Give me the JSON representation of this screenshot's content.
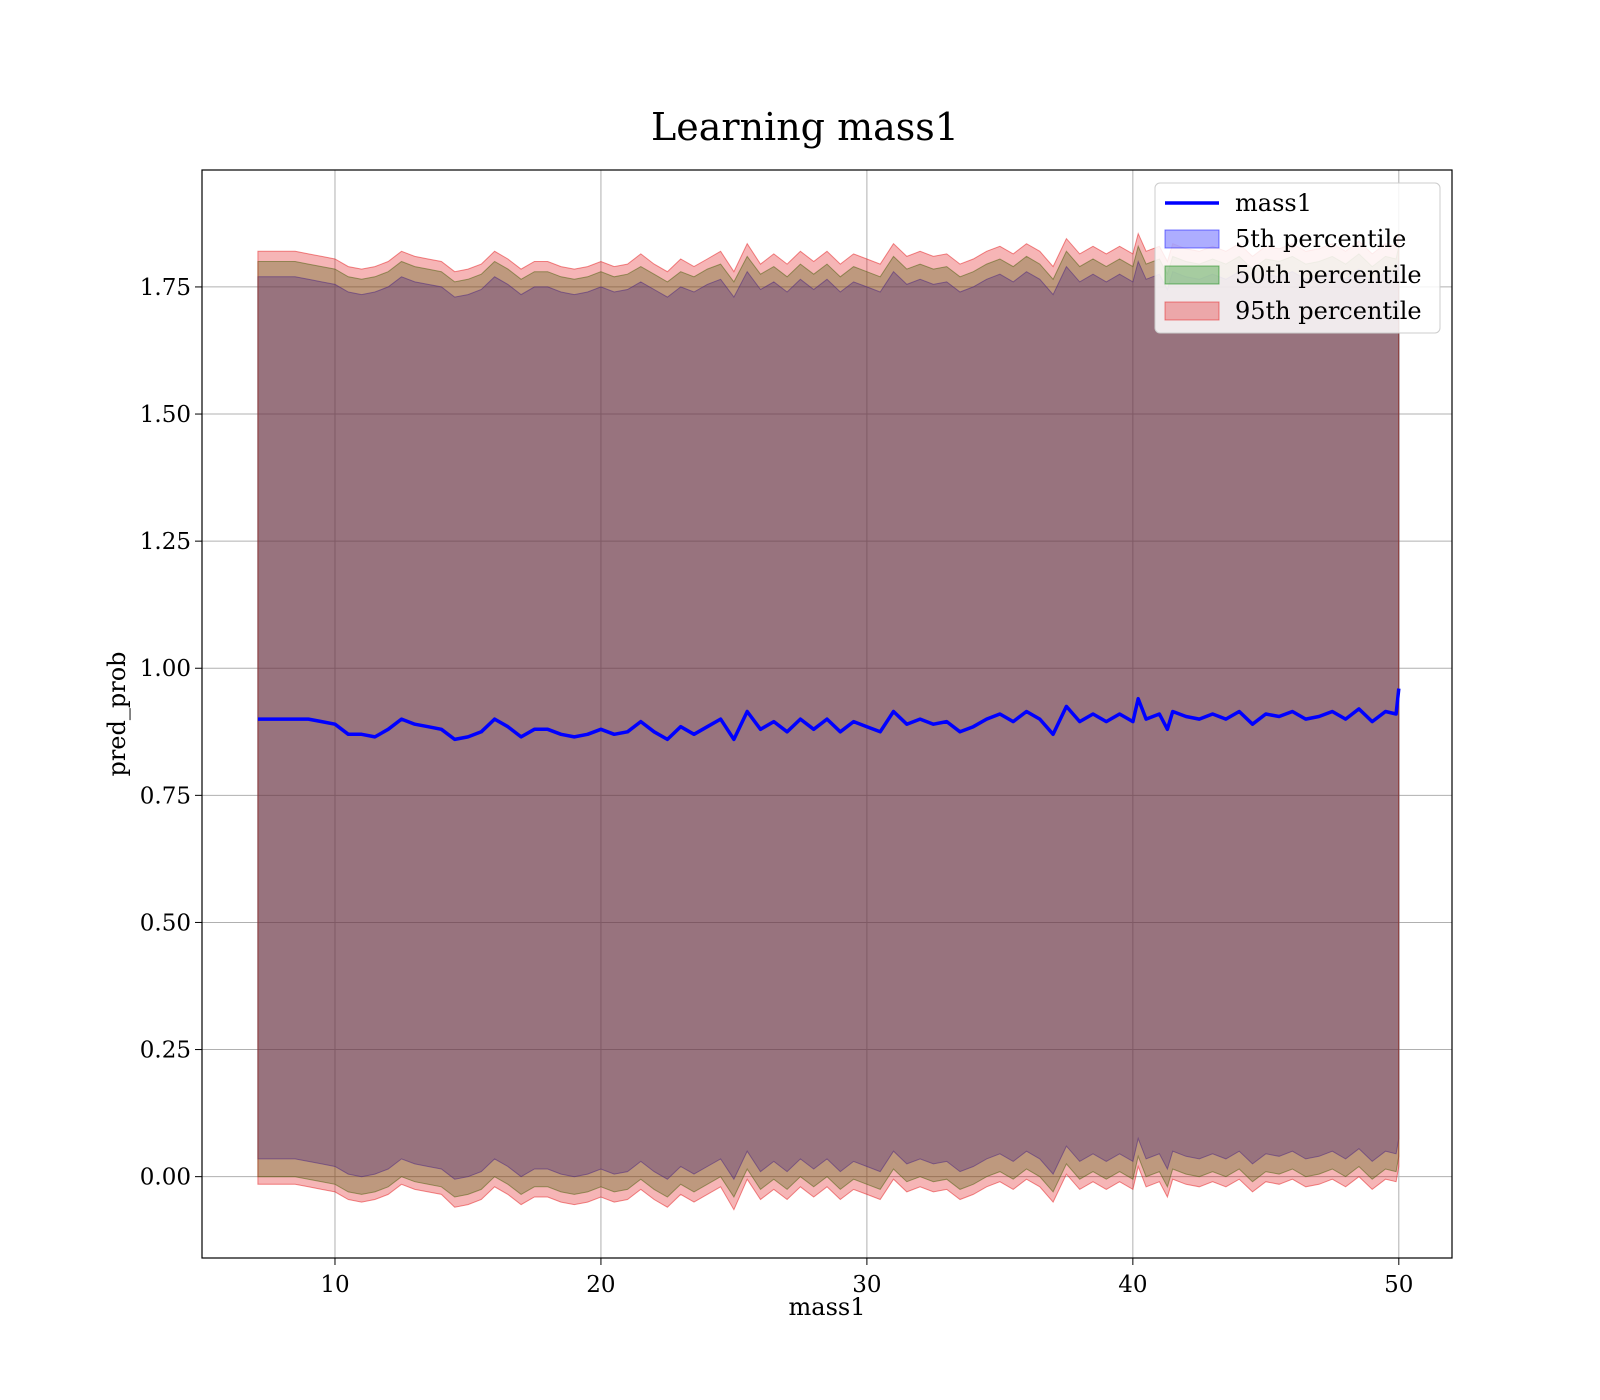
{
  "chart_data": {
    "type": "line",
    "title": "Learning mass1",
    "xlabel": "mass1",
    "ylabel": "pred_prob",
    "xlim": [
      5,
      52
    ],
    "ylim": [
      -0.16,
      1.98
    ],
    "grid": true,
    "legend_position": "top-right",
    "xticks": [
      10,
      20,
      30,
      40,
      50
    ],
    "xtick_labels": [
      "10",
      "20",
      "30",
      "40",
      "50"
    ],
    "yticks": [
      0.0,
      0.25,
      0.5,
      0.75,
      1.0,
      1.25,
      1.5,
      1.75
    ],
    "ytick_labels": [
      "0.00",
      "0.25",
      "0.50",
      "0.75",
      "1.00",
      "1.25",
      "1.50",
      "1.75"
    ],
    "legend": [
      {
        "label": "mass1",
        "kind": "line",
        "color": "#0000ff"
      },
      {
        "label": "5th percentile",
        "kind": "patch",
        "color": "#0000ff"
      },
      {
        "label": "50th percentile",
        "kind": "patch",
        "color": "#008000"
      },
      {
        "label": "95th percentile",
        "kind": "patch",
        "color": "#e31a1c"
      }
    ],
    "x": [
      7.1,
      7.5,
      8.0,
      8.5,
      9.0,
      9.5,
      10.0,
      10.5,
      11.0,
      11.5,
      12.0,
      12.5,
      13.0,
      13.5,
      14.0,
      14.5,
      15.0,
      15.5,
      16.0,
      16.5,
      17.0,
      17.5,
      18.0,
      18.5,
      19.0,
      19.5,
      20.0,
      20.5,
      21.0,
      21.5,
      22.0,
      22.5,
      23.0,
      23.5,
      24.0,
      24.5,
      25.0,
      25.5,
      26.0,
      26.5,
      27.0,
      27.5,
      28.0,
      28.5,
      29.0,
      29.5,
      30.0,
      30.5,
      31.0,
      31.5,
      32.0,
      32.5,
      33.0,
      33.5,
      34.0,
      34.5,
      35.0,
      35.5,
      36.0,
      36.5,
      37.0,
      37.5,
      38.0,
      38.5,
      39.0,
      39.5,
      40.0,
      40.2,
      40.5,
      41.0,
      41.3,
      41.5,
      42.0,
      42.5,
      43.0,
      43.5,
      44.0,
      44.5,
      45.0,
      45.5,
      46.0,
      46.5,
      47.0,
      47.5,
      48.0,
      48.5,
      49.0,
      49.5,
      49.9,
      50.0
    ],
    "series": [
      {
        "name": "mass1",
        "kind": "line",
        "color": "#0000ff",
        "values": [
          0.9,
          0.9,
          0.9,
          0.9,
          0.9,
          0.895,
          0.89,
          0.87,
          0.87,
          0.865,
          0.88,
          0.9,
          0.89,
          0.885,
          0.88,
          0.86,
          0.865,
          0.875,
          0.9,
          0.885,
          0.865,
          0.88,
          0.88,
          0.87,
          0.865,
          0.87,
          0.88,
          0.87,
          0.875,
          0.895,
          0.875,
          0.86,
          0.885,
          0.87,
          0.885,
          0.9,
          0.86,
          0.915,
          0.88,
          0.895,
          0.875,
          0.9,
          0.88,
          0.9,
          0.875,
          0.895,
          0.885,
          0.875,
          0.915,
          0.89,
          0.9,
          0.89,
          0.895,
          0.875,
          0.885,
          0.9,
          0.91,
          0.895,
          0.915,
          0.9,
          0.87,
          0.925,
          0.895,
          0.91,
          0.895,
          0.91,
          0.895,
          0.94,
          0.9,
          0.91,
          0.88,
          0.915,
          0.905,
          0.9,
          0.91,
          0.9,
          0.915,
          0.89,
          0.91,
          0.905,
          0.915,
          0.9,
          0.905,
          0.915,
          0.9,
          0.92,
          0.895,
          0.915,
          0.91,
          0.96
        ]
      },
      {
        "name": "5th percentile",
        "kind": "band",
        "color": "#0000ff",
        "upper": [
          1.77,
          1.77,
          1.77,
          1.77,
          1.765,
          1.76,
          1.755,
          1.74,
          1.735,
          1.74,
          1.75,
          1.77,
          1.76,
          1.755,
          1.75,
          1.73,
          1.735,
          1.745,
          1.77,
          1.755,
          1.735,
          1.75,
          1.75,
          1.74,
          1.735,
          1.74,
          1.75,
          1.74,
          1.745,
          1.76,
          1.745,
          1.73,
          1.75,
          1.74,
          1.755,
          1.765,
          1.73,
          1.78,
          1.745,
          1.76,
          1.74,
          1.765,
          1.745,
          1.765,
          1.74,
          1.76,
          1.75,
          1.74,
          1.78,
          1.755,
          1.765,
          1.755,
          1.76,
          1.74,
          1.75,
          1.765,
          1.775,
          1.76,
          1.78,
          1.765,
          1.735,
          1.79,
          1.76,
          1.775,
          1.76,
          1.775,
          1.76,
          1.8,
          1.765,
          1.775,
          1.745,
          1.78,
          1.77,
          1.765,
          1.775,
          1.765,
          1.78,
          1.755,
          1.775,
          1.77,
          1.78,
          1.765,
          1.77,
          1.78,
          1.765,
          1.785,
          1.76,
          1.78,
          1.775,
          1.8
        ],
        "lower": [
          0.035,
          0.035,
          0.035,
          0.035,
          0.03,
          0.025,
          0.02,
          0.005,
          0.0,
          0.005,
          0.015,
          0.035,
          0.025,
          0.02,
          0.015,
          -0.005,
          0.0,
          0.01,
          0.035,
          0.02,
          0.0,
          0.015,
          0.015,
          0.005,
          0.0,
          0.005,
          0.015,
          0.005,
          0.01,
          0.03,
          0.01,
          -0.005,
          0.02,
          0.005,
          0.02,
          0.035,
          -0.005,
          0.05,
          0.01,
          0.03,
          0.01,
          0.035,
          0.015,
          0.035,
          0.01,
          0.03,
          0.02,
          0.01,
          0.05,
          0.025,
          0.035,
          0.025,
          0.03,
          0.01,
          0.02,
          0.035,
          0.045,
          0.03,
          0.05,
          0.035,
          0.005,
          0.06,
          0.03,
          0.045,
          0.03,
          0.045,
          0.03,
          0.075,
          0.035,
          0.045,
          0.015,
          0.05,
          0.04,
          0.035,
          0.045,
          0.035,
          0.05,
          0.025,
          0.045,
          0.04,
          0.05,
          0.035,
          0.04,
          0.05,
          0.035,
          0.055,
          0.03,
          0.05,
          0.045,
          0.075
        ]
      },
      {
        "name": "50th percentile",
        "kind": "band",
        "color": "#008000",
        "upper": [
          1.8,
          1.8,
          1.8,
          1.8,
          1.795,
          1.79,
          1.785,
          1.77,
          1.765,
          1.77,
          1.78,
          1.8,
          1.79,
          1.785,
          1.78,
          1.76,
          1.765,
          1.775,
          1.8,
          1.785,
          1.765,
          1.78,
          1.78,
          1.77,
          1.765,
          1.77,
          1.78,
          1.77,
          1.775,
          1.79,
          1.775,
          1.76,
          1.78,
          1.77,
          1.785,
          1.795,
          1.76,
          1.81,
          1.775,
          1.79,
          1.77,
          1.795,
          1.775,
          1.795,
          1.77,
          1.79,
          1.78,
          1.77,
          1.81,
          1.785,
          1.795,
          1.785,
          1.79,
          1.77,
          1.78,
          1.795,
          1.805,
          1.79,
          1.81,
          1.795,
          1.765,
          1.82,
          1.79,
          1.805,
          1.79,
          1.805,
          1.79,
          1.83,
          1.795,
          1.805,
          1.775,
          1.81,
          1.8,
          1.795,
          1.805,
          1.795,
          1.81,
          1.785,
          1.805,
          1.8,
          1.81,
          1.795,
          1.8,
          1.81,
          1.795,
          1.815,
          1.79,
          1.81,
          1.805,
          1.83
        ],
        "lower": [
          0.0,
          0.0,
          0.0,
          0.0,
          -0.005,
          -0.01,
          -0.015,
          -0.03,
          -0.035,
          -0.03,
          -0.02,
          0.0,
          -0.01,
          -0.015,
          -0.02,
          -0.04,
          -0.035,
          -0.025,
          0.0,
          -0.015,
          -0.035,
          -0.02,
          -0.02,
          -0.03,
          -0.035,
          -0.03,
          -0.02,
          -0.03,
          -0.025,
          -0.005,
          -0.025,
          -0.04,
          -0.015,
          -0.03,
          -0.015,
          0.0,
          -0.04,
          0.015,
          -0.025,
          -0.005,
          -0.025,
          0.0,
          -0.02,
          0.0,
          -0.025,
          -0.005,
          -0.015,
          -0.025,
          0.015,
          -0.01,
          0.0,
          -0.01,
          -0.005,
          -0.025,
          -0.015,
          0.0,
          0.01,
          -0.005,
          0.015,
          0.0,
          -0.03,
          0.025,
          -0.005,
          0.01,
          -0.005,
          0.01,
          -0.005,
          0.04,
          0.0,
          0.01,
          -0.02,
          0.015,
          0.005,
          0.0,
          0.01,
          0.0,
          0.015,
          -0.01,
          0.01,
          0.005,
          0.015,
          0.0,
          0.005,
          0.015,
          0.0,
          0.02,
          -0.005,
          0.015,
          0.01,
          0.04
        ]
      },
      {
        "name": "95th percentile",
        "kind": "band",
        "color": "#e31a1c",
        "upper": [
          1.82,
          1.82,
          1.82,
          1.82,
          1.815,
          1.81,
          1.805,
          1.79,
          1.785,
          1.79,
          1.8,
          1.82,
          1.81,
          1.805,
          1.8,
          1.78,
          1.785,
          1.795,
          1.82,
          1.805,
          1.785,
          1.8,
          1.8,
          1.79,
          1.785,
          1.79,
          1.8,
          1.79,
          1.795,
          1.815,
          1.795,
          1.78,
          1.805,
          1.79,
          1.805,
          1.82,
          1.78,
          1.835,
          1.795,
          1.815,
          1.795,
          1.82,
          1.8,
          1.82,
          1.795,
          1.815,
          1.805,
          1.795,
          1.835,
          1.81,
          1.82,
          1.81,
          1.815,
          1.795,
          1.805,
          1.82,
          1.83,
          1.815,
          1.835,
          1.82,
          1.79,
          1.845,
          1.815,
          1.83,
          1.815,
          1.83,
          1.815,
          1.855,
          1.82,
          1.83,
          1.8,
          1.835,
          1.825,
          1.82,
          1.83,
          1.82,
          1.835,
          1.81,
          1.83,
          1.825,
          1.835,
          1.82,
          1.825,
          1.835,
          1.82,
          1.84,
          1.815,
          1.835,
          1.83,
          1.855
        ],
        "lower": [
          -0.015,
          -0.015,
          -0.015,
          -0.015,
          -0.02,
          -0.025,
          -0.03,
          -0.045,
          -0.05,
          -0.045,
          -0.035,
          -0.015,
          -0.025,
          -0.03,
          -0.035,
          -0.06,
          -0.055,
          -0.045,
          -0.02,
          -0.035,
          -0.055,
          -0.04,
          -0.04,
          -0.05,
          -0.055,
          -0.05,
          -0.04,
          -0.05,
          -0.045,
          -0.025,
          -0.045,
          -0.06,
          -0.035,
          -0.05,
          -0.035,
          -0.02,
          -0.065,
          -0.005,
          -0.045,
          -0.025,
          -0.045,
          -0.02,
          -0.04,
          -0.02,
          -0.045,
          -0.025,
          -0.035,
          -0.045,
          -0.005,
          -0.03,
          -0.02,
          -0.03,
          -0.025,
          -0.045,
          -0.035,
          -0.02,
          -0.01,
          -0.025,
          -0.005,
          -0.02,
          -0.05,
          0.005,
          -0.025,
          -0.01,
          -0.025,
          -0.01,
          -0.025,
          0.02,
          -0.02,
          -0.01,
          -0.04,
          -0.005,
          -0.015,
          -0.02,
          -0.01,
          -0.02,
          -0.005,
          -0.03,
          -0.01,
          -0.015,
          -0.005,
          -0.02,
          -0.015,
          -0.005,
          -0.02,
          0.0,
          -0.025,
          -0.005,
          -0.01,
          0.02
        ]
      }
    ]
  }
}
